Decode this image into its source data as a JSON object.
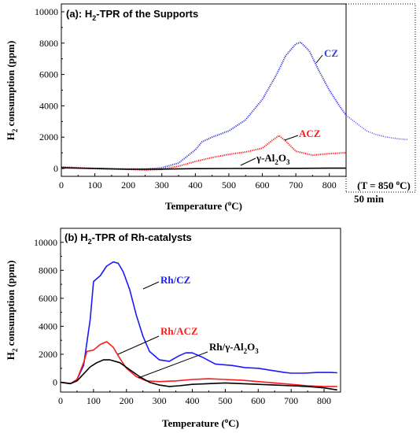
{
  "chart_data": [
    {
      "type": "line",
      "title": "(a): H2-TPR of the Supports",
      "xlabel": "Temperature (oC)",
      "ylabel": "H2 consumption (ppm)",
      "xlim": [
        0,
        850
      ],
      "ylim": [
        -500,
        10500
      ],
      "x_ticks": [
        "0",
        "100",
        "200",
        "300",
        "400",
        "500",
        "600",
        "700",
        "800"
      ],
      "y_ticks": [
        "0",
        "2000",
        "4000",
        "6000",
        "8000",
        "10000"
      ],
      "isothermal_label": "(T = 850 oC)",
      "isothermal_time": "50 min",
      "grid": false,
      "series": [
        {
          "name": "CZ",
          "color": "#3b3bdc",
          "style": "dotted",
          "x": [
            0,
            50,
            100,
            150,
            200,
            250,
            300,
            350,
            400,
            420,
            450,
            500,
            550,
            600,
            640,
            670,
            700,
            715,
            740,
            770,
            800,
            830,
            850
          ],
          "y": [
            100,
            50,
            0,
            -20,
            -30,
            -40,
            50,
            350,
            1200,
            1700,
            2000,
            2400,
            3100,
            4400,
            5900,
            7200,
            7950,
            8050,
            7500,
            6200,
            5000,
            4000,
            3400
          ],
          "tail_y": [
            3400,
            2900,
            2400,
            2150,
            2000,
            1900,
            1850
          ]
        },
        {
          "name": "ACZ",
          "color": "#ff1a1a",
          "style": "dotted",
          "x": [
            0,
            100,
            200,
            250,
            300,
            350,
            400,
            450,
            500,
            550,
            600,
            630,
            650,
            670,
            700,
            750,
            800,
            850
          ],
          "y": [
            50,
            0,
            -50,
            -100,
            -50,
            150,
            450,
            700,
            900,
            1050,
            1300,
            1800,
            2100,
            1750,
            1100,
            850,
            950,
            1000
          ]
        },
        {
          "name": "γ-Al2O3",
          "color": "#000000",
          "style": "solid",
          "x": [
            0,
            100,
            200,
            300,
            400,
            500,
            600,
            700,
            800,
            850
          ],
          "y": [
            50,
            0,
            -50,
            -40,
            -10,
            0,
            10,
            10,
            20,
            20
          ]
        }
      ]
    },
    {
      "type": "line",
      "title": "(b) H2-TPR of Rh-catalysts",
      "xlabel": "Temperature (oC)",
      "ylabel": "H2 consumption (ppm)",
      "xlim": [
        0,
        850
      ],
      "ylim": [
        -700,
        11000
      ],
      "x_ticks": [
        "0",
        "100",
        "200",
        "300",
        "400",
        "500",
        "600",
        "700",
        "800"
      ],
      "y_ticks": [
        "0",
        "2000",
        "4000",
        "6000",
        "8000",
        "10000"
      ],
      "grid": false,
      "series": [
        {
          "name": "Rh/CZ",
          "color": "#1a1aff",
          "style": "solid",
          "x": [
            0,
            30,
            50,
            70,
            90,
            100,
            120,
            140,
            160,
            175,
            190,
            210,
            230,
            250,
            270,
            300,
            330,
            360,
            380,
            400,
            430,
            470,
            520,
            560,
            600,
            640,
            680,
            700,
            740,
            780,
            820,
            840
          ],
          "y": [
            0,
            -100,
            200,
            1200,
            4500,
            7200,
            7600,
            8300,
            8600,
            8500,
            7900,
            6600,
            4800,
            3300,
            2200,
            1600,
            1500,
            1900,
            2100,
            2100,
            1800,
            1300,
            1200,
            1050,
            1000,
            850,
            700,
            650,
            650,
            700,
            700,
            680
          ]
        },
        {
          "name": "Rh/ACZ",
          "color": "#ff1a1a",
          "style": "solid",
          "x": [
            0,
            30,
            50,
            70,
            80,
            100,
            120,
            140,
            160,
            180,
            200,
            230,
            260,
            300,
            350,
            400,
            450,
            500,
            550,
            600,
            650,
            700,
            750,
            800,
            840
          ],
          "y": [
            0,
            -100,
            200,
            1400,
            2200,
            2300,
            2700,
            2900,
            2500,
            1700,
            1000,
            400,
            100,
            50,
            100,
            200,
            250,
            200,
            150,
            50,
            -50,
            -150,
            -250,
            -300,
            -300
          ]
        },
        {
          "name": "Rh/γ-Al2O3",
          "color": "#000000",
          "style": "solid",
          "x": [
            0,
            30,
            50,
            70,
            90,
            110,
            130,
            150,
            180,
            210,
            240,
            270,
            300,
            330,
            360,
            400,
            450,
            500,
            550,
            600,
            650,
            700,
            750,
            800,
            840
          ],
          "y": [
            0,
            -100,
            100,
            600,
            1100,
            1400,
            1600,
            1600,
            1400,
            900,
            400,
            0,
            -200,
            -300,
            -250,
            -150,
            -100,
            -50,
            -100,
            -150,
            -200,
            -250,
            -300,
            -400,
            -550
          ]
        }
      ]
    }
  ]
}
